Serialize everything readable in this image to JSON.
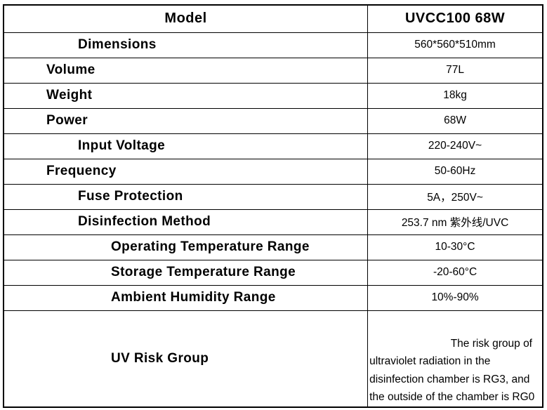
{
  "table": {
    "header": [
      "Model",
      "UVCC100 68W"
    ],
    "rows": [
      [
        "Dimensions",
        "560*560*510mm"
      ],
      [
        "Volume",
        "77L"
      ],
      [
        "Weight",
        "18kg"
      ],
      [
        "Power",
        "68W"
      ],
      [
        "Input Voltage",
        "220-240V~"
      ],
      [
        "Frequency",
        "50-60Hz"
      ],
      [
        "Fuse Protection",
        "5A，250V~"
      ],
      [
        "Disinfection Method",
        "253.7 nm 紫外线/UVC"
      ],
      [
        "Operating Temperature Range",
        "10-30°C"
      ],
      [
        "Storage Temperature Range",
        "-20-60°C"
      ],
      [
        "Ambient Humidity Range",
        "10%-90%"
      ],
      [
        "UV Risk Group",
        [
          "The risk group of",
          "ultraviolet radiation in the",
          "disinfection chamber is RG3, and",
          "the outside of the chamber is RG0"
        ]
      ]
    ]
  }
}
